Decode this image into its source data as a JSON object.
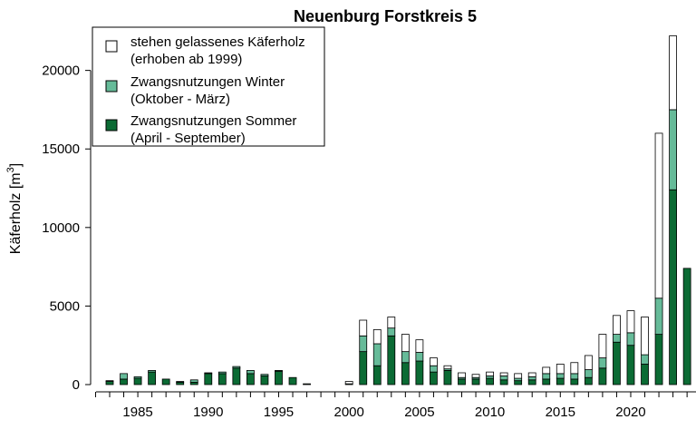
{
  "chart_data": {
    "type": "bar",
    "stacked": true,
    "title": "Neuenburg Forstkreis 5",
    "ylabel": "Käferholz [m",
    "ylabel_sup": "3",
    "ylabel_close": "]",
    "ylim": [
      0,
      23000
    ],
    "y_ticks": [
      0,
      5000,
      10000,
      15000,
      20000
    ],
    "x_tick_labels": [
      "1985",
      "1990",
      "1995",
      "2000",
      "2005",
      "2010",
      "2015",
      "2020"
    ],
    "categories": [
      "1983",
      "1984",
      "1985",
      "1986",
      "1987",
      "1988",
      "1989",
      "1990",
      "1991",
      "1992",
      "1993",
      "1994",
      "1995",
      "1996",
      "1997",
      "1998",
      "1999",
      "2000",
      "2001",
      "2002",
      "2003",
      "2004",
      "2005",
      "2006",
      "2007",
      "2008",
      "2009",
      "2010",
      "2011",
      "2012",
      "2013",
      "2014",
      "2015",
      "2016",
      "2017",
      "2018",
      "2019",
      "2020",
      "2021",
      "2022",
      "2023",
      "2024"
    ],
    "series": [
      {
        "name": "Zwangsnutzungen Sommer\n(April - September)",
        "color": "#0b6b34",
        "values": [
          200,
          350,
          400,
          800,
          350,
          150,
          150,
          700,
          700,
          1050,
          700,
          550,
          850,
          450,
          50,
          0,
          0,
          0,
          2100,
          1200,
          3100,
          1400,
          1500,
          800,
          900,
          350,
          350,
          400,
          300,
          250,
          300,
          350,
          400,
          350,
          450,
          1050,
          2700,
          2500,
          1300,
          3200,
          12400,
          7400
        ]
      },
      {
        "name": "Zwangsnutzungen Winter\n(Oktober - März)",
        "color": "#66bb99",
        "values": [
          50,
          350,
          100,
          100,
          0,
          50,
          150,
          50,
          100,
          100,
          200,
          100,
          50,
          0,
          0,
          0,
          0,
          50,
          1000,
          1400,
          500,
          700,
          550,
          400,
          100,
          100,
          100,
          150,
          250,
          150,
          200,
          350,
          300,
          350,
          500,
          650,
          500,
          800,
          600,
          2300,
          5100,
          0
        ]
      },
      {
        "name": "stehen gelassenes Käferholz\n(erhoben ab 1999)",
        "color": "#ffffff",
        "values": [
          0,
          0,
          0,
          0,
          0,
          0,
          0,
          0,
          0,
          0,
          0,
          0,
          0,
          0,
          0,
          0,
          0,
          150,
          1000,
          900,
          700,
          1100,
          800,
          500,
          200,
          300,
          200,
          250,
          200,
          300,
          250,
          400,
          600,
          700,
          900,
          1500,
          1200,
          1400,
          2400,
          10500,
          4700,
          0
        ]
      }
    ],
    "legend": {
      "placement": "top-left",
      "entries": [
        {
          "line1": "stehen gelassenes Käferholz",
          "line2": "(erhoben ab 1999)",
          "color": "#ffffff"
        },
        {
          "line1": "Zwangsnutzungen Winter",
          "line2": "(Oktober - März)",
          "color": "#66bb99"
        },
        {
          "line1": "Zwangsnutzungen Sommer",
          "line2": "(April - September)",
          "color": "#0b6b34"
        }
      ]
    },
    "grid": false
  }
}
